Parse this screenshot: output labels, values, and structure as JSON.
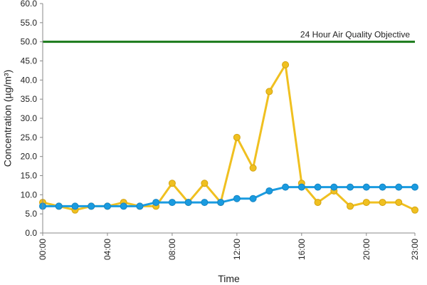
{
  "chart_data": {
    "type": "line",
    "title": "",
    "xlabel": "Time",
    "ylabel": "Concentration (µg/m³)",
    "ylim": [
      0,
      60
    ],
    "yticks": [
      "0.0",
      "5.0",
      "10.0",
      "15.0",
      "20.0",
      "25.0",
      "30.0",
      "35.0",
      "40.0",
      "45.0",
      "50.0",
      "55.0",
      "60.0"
    ],
    "xlim": [
      0,
      23
    ],
    "xticks": [
      {
        "value": 0,
        "label": "00:00"
      },
      {
        "value": 4,
        "label": "04:00"
      },
      {
        "value": 8,
        "label": "08:00"
      },
      {
        "value": 12,
        "label": "12:00"
      },
      {
        "value": 16,
        "label": "16:00"
      },
      {
        "value": 20,
        "label": "20:00"
      },
      {
        "value": 23,
        "label": "23:00"
      }
    ],
    "grid": false,
    "x": [
      0,
      1,
      2,
      3,
      4,
      5,
      6,
      7,
      8,
      9,
      10,
      11,
      12,
      13,
      14,
      15,
      16,
      17,
      18,
      19,
      20,
      21,
      22,
      23
    ],
    "series": [
      {
        "color": "#f0c020",
        "values": [
          8,
          7,
          6,
          7,
          7,
          8,
          7,
          7,
          13,
          8,
          13,
          8,
          25,
          17,
          37,
          44,
          13,
          8,
          11,
          7,
          8,
          8,
          8,
          6
        ]
      },
      {
        "color": "#1a9be0",
        "values": [
          7,
          7,
          7,
          7,
          7,
          7,
          7,
          8,
          8,
          8,
          8,
          8,
          9,
          9,
          11,
          12,
          12,
          12,
          12,
          12,
          12,
          12,
          12,
          12
        ]
      }
    ],
    "reference_line": {
      "value": 50,
      "label": "24 Hour Air Quality Objective",
      "color": "#1a7a1a"
    }
  }
}
